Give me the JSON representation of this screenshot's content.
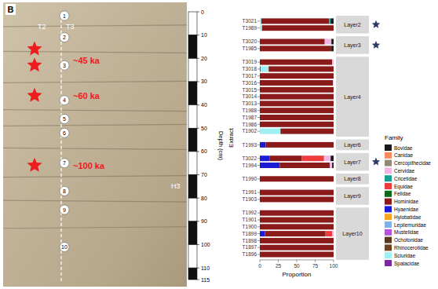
{
  "chart_data": [
    {
      "type": "section",
      "panel_label": "B",
      "columns": [
        "T2",
        "T3"
      ],
      "profile_label": "H3",
      "ylabel": "Depth (cm)",
      "ylim": [
        0,
        115
      ],
      "yticks": [
        0,
        10,
        20,
        30,
        40,
        50,
        60,
        70,
        80,
        90,
        100,
        110,
        115
      ],
      "layers": {
        "labels": [
          "1",
          "2",
          "3",
          "4",
          "5",
          "6",
          "7",
          "8",
          "9",
          "10"
        ],
        "depths": [
          1.7,
          11,
          23,
          38,
          46,
          52,
          65,
          77,
          85,
          101
        ]
      },
      "star_depths": [
        16,
        23,
        36,
        66
      ],
      "annotations": [
        {
          "text": "~45 ka",
          "depth": 21
        },
        {
          "text": "~60 ka",
          "depth": 36
        },
        {
          "text": "~100 ka",
          "depth": 66
        }
      ]
    },
    {
      "type": "bar",
      "orientation": "horizontal",
      "stacked": true,
      "xlabel": "Proportion",
      "ylabel": "Extract",
      "legend_title": "Family",
      "legend": "right",
      "xlim": [
        0,
        100
      ],
      "xticks": [
        0,
        25,
        50,
        75,
        100
      ],
      "categories": [
        "T3021",
        "T1989",
        "T3020",
        "T1985",
        "T3019",
        "T3018",
        "T3017",
        "T3016",
        "T3015",
        "T3014",
        "T3013",
        "T1988",
        "T1987",
        "T1986",
        "T1902",
        "T1993",
        "T3022",
        "T1994",
        "T1990",
        "T1991",
        "T1903",
        "T1992",
        "T1901",
        "T1900",
        "T1899",
        "T1898",
        "T1897",
        "T1896"
      ],
      "layers": [
        "Layer2",
        "Layer2",
        "Layer3",
        "Layer3",
        "Layer4",
        "Layer4",
        "Layer4",
        "Layer4",
        "Layer4",
        "Layer4",
        "Layer4",
        "Layer4",
        "Layer4",
        "Layer4",
        "Layer4",
        "Layer6",
        "Layer7",
        "Layer7",
        "Layer8",
        "Layer9",
        "Layer9",
        "Layer10",
        "Layer10",
        "Layer10",
        "Layer10",
        "Layer10",
        "Layer10",
        "Layer10"
      ],
      "marked_layers": [
        "Layer2",
        "Layer3",
        "Layer7"
      ],
      "series": [
        {
          "name": "Bovidae",
          "color": "#1a1a1a",
          "values": [
            4,
            0,
            3,
            3,
            0,
            0,
            0,
            0,
            0,
            0,
            0,
            0,
            0,
            0,
            0,
            0,
            4,
            2,
            0,
            0,
            0,
            0,
            0,
            0,
            0,
            0,
            0,
            0
          ]
        },
        {
          "name": "Canidae",
          "color": "#f68a5b",
          "values": [
            0,
            0,
            0,
            0,
            0,
            0,
            0,
            0,
            0,
            0,
            0,
            0,
            0,
            0,
            0,
            0,
            0,
            0,
            0,
            0,
            0,
            0,
            0,
            0,
            0,
            0,
            0,
            0
          ]
        },
        {
          "name": "Cercopithecidae",
          "color": "#8e8a76",
          "values": [
            0,
            0,
            0,
            0,
            0,
            0,
            0,
            0,
            0,
            0,
            0,
            0,
            0,
            0,
            0,
            0,
            0,
            0,
            0,
            0,
            0,
            0,
            0,
            0,
            0,
            0,
            0,
            0
          ]
        },
        {
          "name": "Cervidae",
          "color": "#f1b6e6",
          "values": [
            0,
            0,
            9,
            0,
            2,
            0,
            0,
            1,
            0,
            0,
            0,
            0,
            0,
            0,
            0,
            0,
            9,
            3,
            0,
            0,
            0,
            0,
            0,
            0,
            2,
            0,
            0,
            0
          ]
        },
        {
          "name": "Cricetidae",
          "color": "#17a08f",
          "values": [
            2,
            0,
            0,
            0,
            0,
            0,
            0,
            0,
            0,
            0,
            0,
            0,
            0,
            0,
            0,
            0,
            0,
            0,
            0,
            0,
            0,
            0,
            0,
            0,
            0,
            0,
            0,
            0
          ]
        },
        {
          "name": "Equidae",
          "color": "#ef3b3b",
          "values": [
            0,
            0,
            0,
            0,
            0,
            0,
            0,
            0,
            0,
            0,
            0,
            0,
            0,
            0,
            0,
            0,
            30,
            0,
            0,
            0,
            0,
            0,
            0,
            0,
            9,
            0,
            0,
            0
          ]
        },
        {
          "name": "Felidae",
          "color": "#0b6b1a",
          "values": [
            0,
            0,
            0,
            0,
            0,
            0,
            0,
            0,
            0,
            0,
            0,
            0,
            0,
            0,
            0,
            0,
            0,
            0,
            0,
            0,
            0,
            0,
            0,
            0,
            0,
            0,
            0,
            0
          ]
        },
        {
          "name": "Hominidae",
          "color": "#8b1a1a",
          "values": [
            92,
            97,
            88,
            97,
            98,
            88,
            100,
            99,
            100,
            100,
            100,
            100,
            100,
            100,
            72,
            92,
            44,
            68,
            100,
            100,
            100,
            100,
            100,
            100,
            82,
            100,
            100,
            100
          ]
        },
        {
          "name": "Hyaenidae",
          "color": "#1c1cd6",
          "values": [
            0,
            0,
            0,
            0,
            0,
            0,
            0,
            0,
            0,
            0,
            0,
            0,
            0,
            0,
            0,
            8,
            13,
            27,
            0,
            0,
            0,
            0,
            0,
            0,
            7,
            0,
            0,
            0
          ]
        },
        {
          "name": "Hylobatidae",
          "color": "#f7a520",
          "values": [
            0,
            0,
            0,
            0,
            0,
            0,
            0,
            0,
            0,
            0,
            0,
            0,
            0,
            0,
            0,
            0,
            0,
            0,
            0,
            0,
            0,
            0,
            0,
            0,
            0,
            0,
            0,
            0
          ]
        },
        {
          "name": "Lepilemuridae",
          "color": "#7fb2e5",
          "values": [
            0,
            0,
            0,
            0,
            0,
            0,
            0,
            0,
            0,
            0,
            0,
            0,
            0,
            0,
            0,
            0,
            0,
            0,
            0,
            0,
            0,
            0,
            0,
            0,
            0,
            0,
            0,
            0
          ]
        },
        {
          "name": "Mustelidae",
          "color": "#b455d9",
          "values": [
            0,
            0,
            0,
            0,
            0,
            0,
            0,
            0,
            0,
            0,
            0,
            0,
            0,
            0,
            0,
            0,
            0,
            0,
            0,
            0,
            0,
            0,
            0,
            0,
            0,
            0,
            0,
            0
          ]
        },
        {
          "name": "Ochotonidae",
          "color": "#5a3a1e",
          "values": [
            0,
            0,
            0,
            0,
            0,
            0,
            0,
            0,
            0,
            0,
            0,
            0,
            0,
            0,
            0,
            0,
            0,
            0,
            0,
            0,
            0,
            0,
            0,
            0,
            0,
            0,
            0,
            0
          ]
        },
        {
          "name": "Rhinocerotidae",
          "color": "#6b4423",
          "values": [
            0,
            0,
            0,
            0,
            0,
            0,
            0,
            0,
            0,
            0,
            0,
            0,
            0,
            0,
            0,
            0,
            0,
            0,
            0,
            0,
            0,
            0,
            0,
            0,
            0,
            0,
            0,
            0
          ]
        },
        {
          "name": "Sciuridae",
          "color": "#9ff0f2",
          "values": [
            2,
            3,
            0,
            0,
            0,
            11,
            0,
            0,
            0,
            0,
            0,
            0,
            0,
            0,
            28,
            0,
            0,
            0,
            0,
            0,
            0,
            0,
            0,
            0,
            0,
            0,
            0,
            0
          ]
        },
        {
          "name": "Spalacidae",
          "color": "#7a2aa0",
          "values": [
            0,
            0,
            0,
            0,
            0,
            1,
            0,
            0,
            0,
            0,
            0,
            0,
            0,
            0,
            0,
            0,
            0,
            0,
            0,
            0,
            0,
            0,
            0,
            0,
            0,
            0,
            0,
            0
          ]
        }
      ]
    }
  ]
}
